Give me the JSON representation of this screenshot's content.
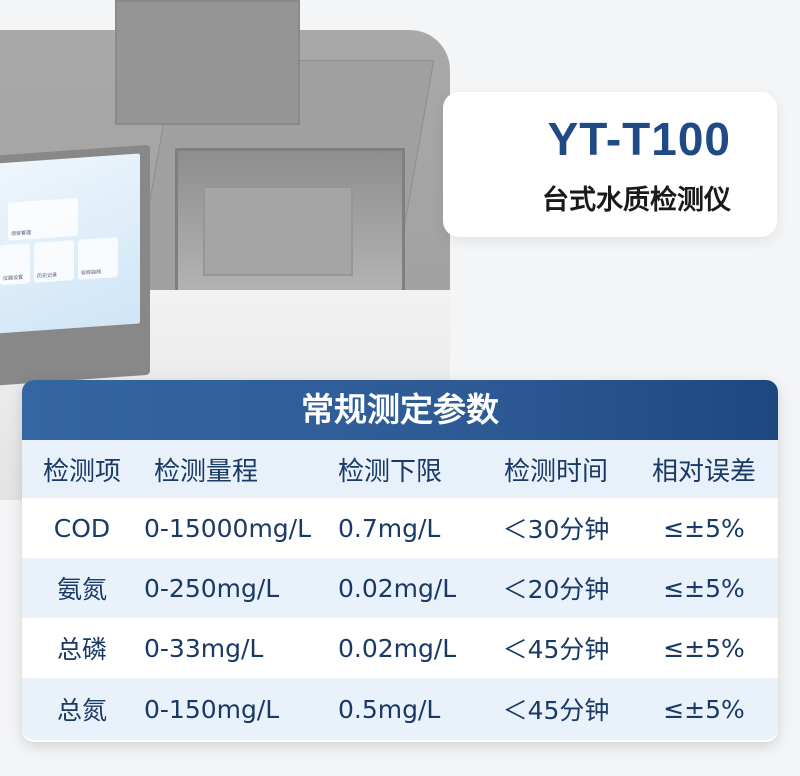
{
  "product": {
    "model": "YT-T100",
    "name": "台式水质检测仪"
  },
  "screen": {
    "tiles": [
      "项目管理",
      "仪器设置",
      "历史记录",
      "标样曲线"
    ]
  },
  "table": {
    "title": "常规测定参数",
    "headers": [
      "检测项",
      "检测量程",
      "检测下限",
      "检测时间",
      "相对误差"
    ],
    "rows": [
      [
        "COD",
        "0-15000mg/L",
        "0.7mg/L",
        "＜30分钟",
        "≤±5%"
      ],
      [
        "氨氮",
        "0-250mg/L",
        "0.02mg/L",
        "＜20分钟",
        "≤±5%"
      ],
      [
        "总磷",
        "0-33mg/L",
        "0.02mg/L",
        "＜45分钟",
        "≤±5%"
      ],
      [
        "总氮",
        "0-150mg/L",
        "0.5mg/L",
        "＜45分钟",
        "≤±5%"
      ]
    ]
  }
}
